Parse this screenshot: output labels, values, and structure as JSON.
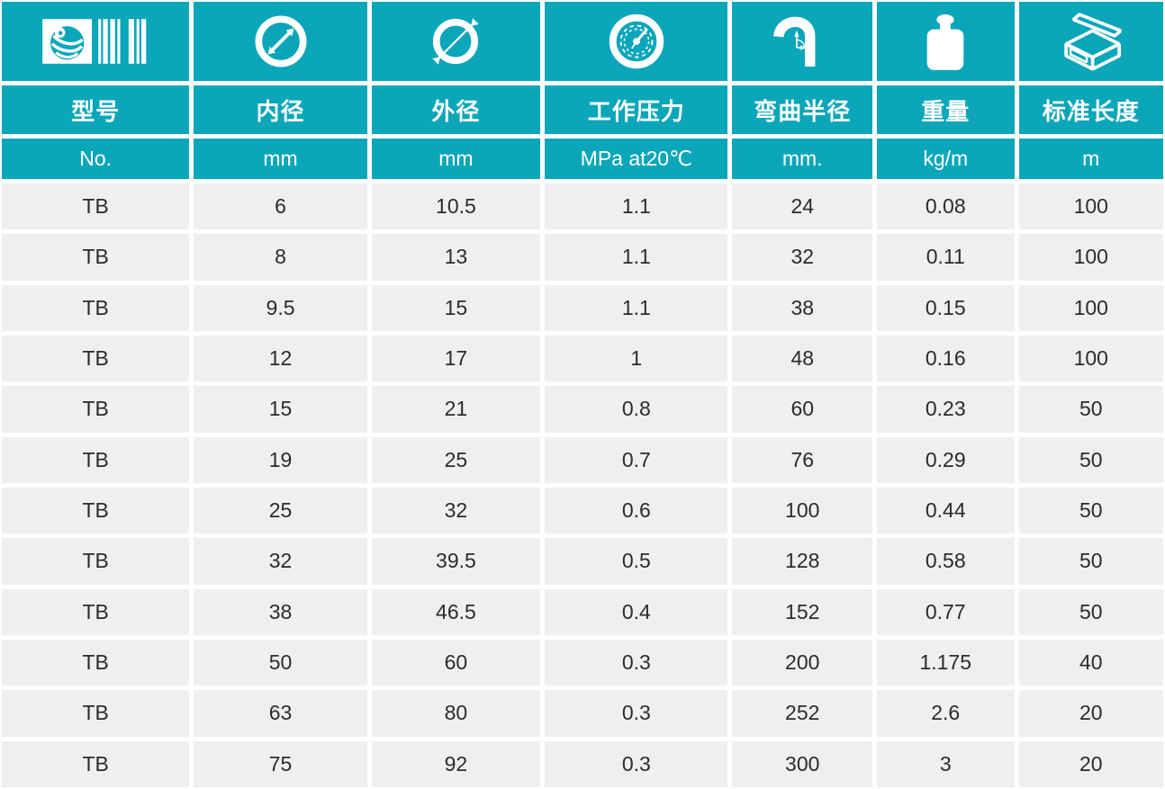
{
  "theme": {
    "teal": "#0ba6b9",
    "row_bg": "#efefef",
    "text_dark": "#2b2b2b",
    "white": "#ffffff"
  },
  "chart_data": {
    "type": "table",
    "title": "",
    "columns": [
      {
        "icon": "logo-barcode-icon",
        "label": "型号",
        "unit": "No."
      },
      {
        "icon": "inner-diameter-icon",
        "label": "内径",
        "unit": "mm"
      },
      {
        "icon": "outer-diameter-icon",
        "label": "外径",
        "unit": "mm"
      },
      {
        "icon": "pressure-gauge-icon",
        "label": "工作压力",
        "unit": "MPa at20℃"
      },
      {
        "icon": "bend-radius-icon",
        "label": "弯曲半径",
        "unit": "mm."
      },
      {
        "icon": "weight-icon",
        "label": "重量",
        "unit": "kg/m"
      },
      {
        "icon": "package-box-icon",
        "label": "标准长度",
        "unit": "m"
      }
    ],
    "rows": [
      [
        "TB",
        "6",
        "10.5",
        "1.1",
        "24",
        "0.08",
        "100"
      ],
      [
        "TB",
        "8",
        "13",
        "1.1",
        "32",
        "0.11",
        "100"
      ],
      [
        "TB",
        "9.5",
        "15",
        "1.1",
        "38",
        "0.15",
        "100"
      ],
      [
        "TB",
        "12",
        "17",
        "1",
        "48",
        "0.16",
        "100"
      ],
      [
        "TB",
        "15",
        "21",
        "0.8",
        "60",
        "0.23",
        "50"
      ],
      [
        "TB",
        "19",
        "25",
        "0.7",
        "76",
        "0.29",
        "50"
      ],
      [
        "TB",
        "25",
        "32",
        "0.6",
        "100",
        "0.44",
        "50"
      ],
      [
        "TB",
        "32",
        "39.5",
        "0.5",
        "128",
        "0.58",
        "50"
      ],
      [
        "TB",
        "38",
        "46.5",
        "0.4",
        "152",
        "0.77",
        "50"
      ],
      [
        "TB",
        "50",
        "60",
        "0.3",
        "200",
        "1.175",
        "40"
      ],
      [
        "TB",
        "63",
        "80",
        "0.3",
        "252",
        "2.6",
        "20"
      ],
      [
        "TB",
        "75",
        "92",
        "0.3",
        "300",
        "3",
        "20"
      ]
    ]
  }
}
